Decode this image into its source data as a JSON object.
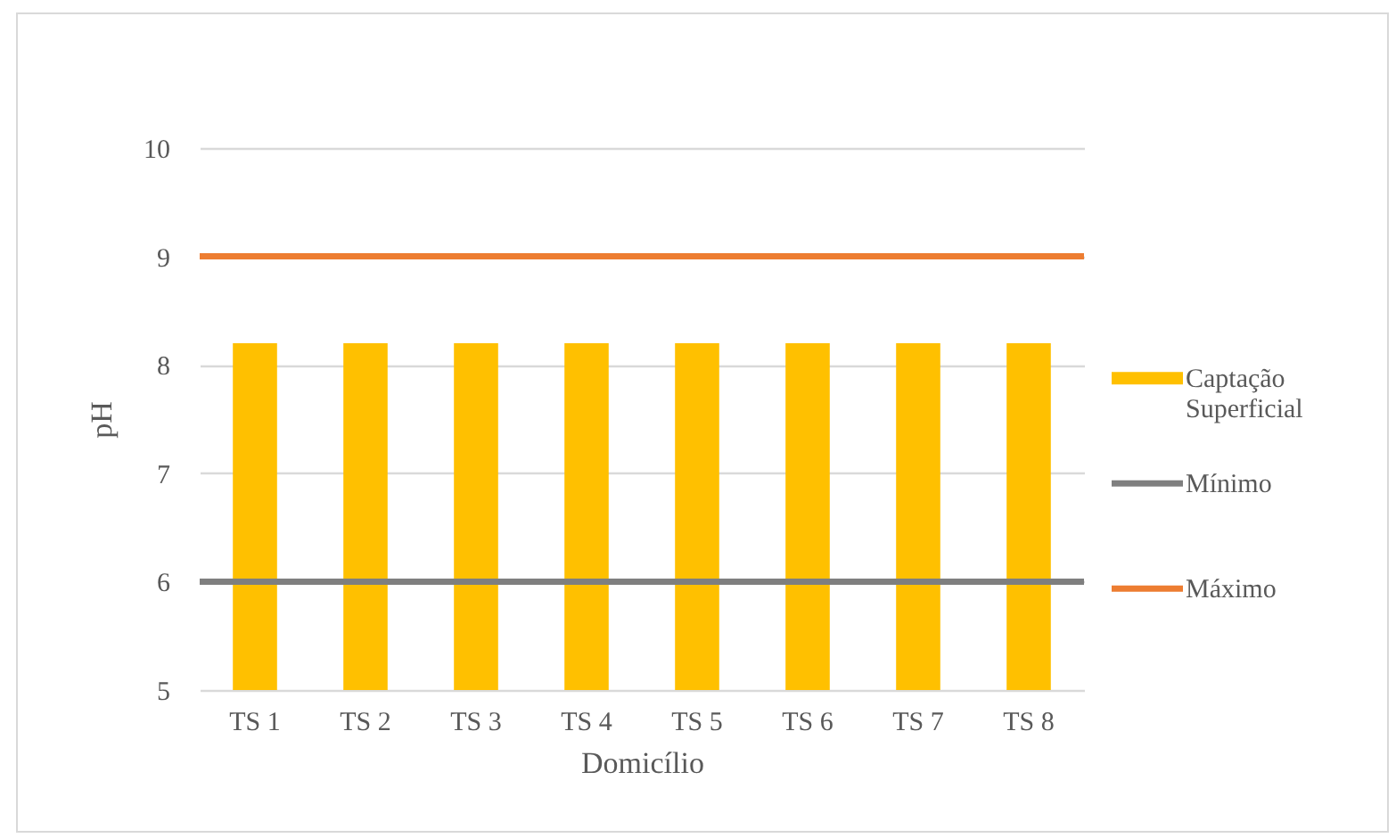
{
  "chart_data": {
    "type": "bar",
    "xlabel": "Domicílio",
    "ylabel": "pH",
    "categories": [
      "TS 1",
      "TS 2",
      "TS 3",
      "TS 4",
      "TS 5",
      "TS 6",
      "TS 7",
      "TS 8"
    ],
    "series": [
      {
        "name": "Captação Superficial",
        "color": "#ffc000",
        "values": [
          8.2,
          8.2,
          8.2,
          8.2,
          8.2,
          8.2,
          8.2,
          8.2
        ]
      }
    ],
    "ylim": [
      5,
      10
    ],
    "yticks": [
      5,
      6,
      7,
      8,
      9,
      10
    ],
    "grid": "y",
    "legend": "right",
    "ref_lines": [
      {
        "axis": "y",
        "value": 6,
        "label": "Mínimo",
        "color": "#7f7f7f"
      },
      {
        "axis": "y",
        "value": 9,
        "label": "Máximo",
        "color": "#ed7d31"
      }
    ]
  }
}
